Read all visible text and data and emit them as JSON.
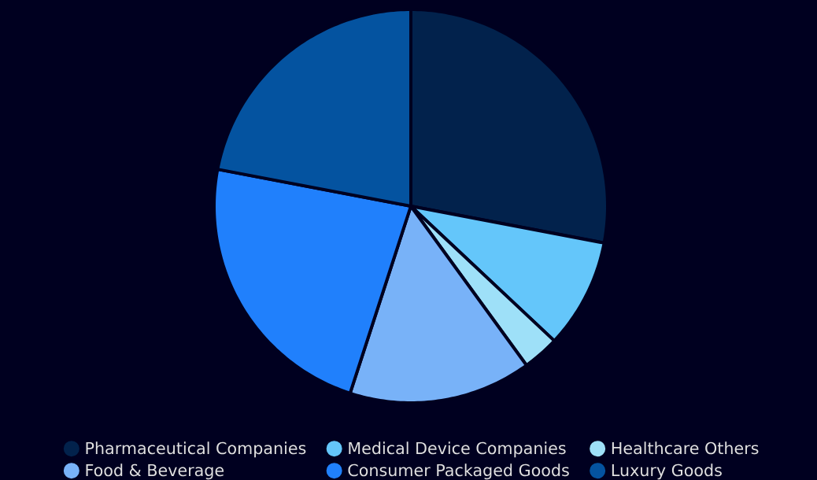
{
  "chart_data": {
    "type": "pie",
    "categories": [
      "Pharmaceutical Companies",
      "Medical Device Companies",
      "Healthcare Others",
      "Food & Beverage",
      "Consumer Packaged Goods",
      "Luxury Goods"
    ],
    "values": [
      28,
      9,
      3,
      15,
      23,
      22
    ],
    "colors": [
      "#02224c",
      "#64c6fa",
      "#9ee0f8",
      "#78b2f8",
      "#2080fc",
      "#0453a0"
    ],
    "legend": "bottom"
  }
}
